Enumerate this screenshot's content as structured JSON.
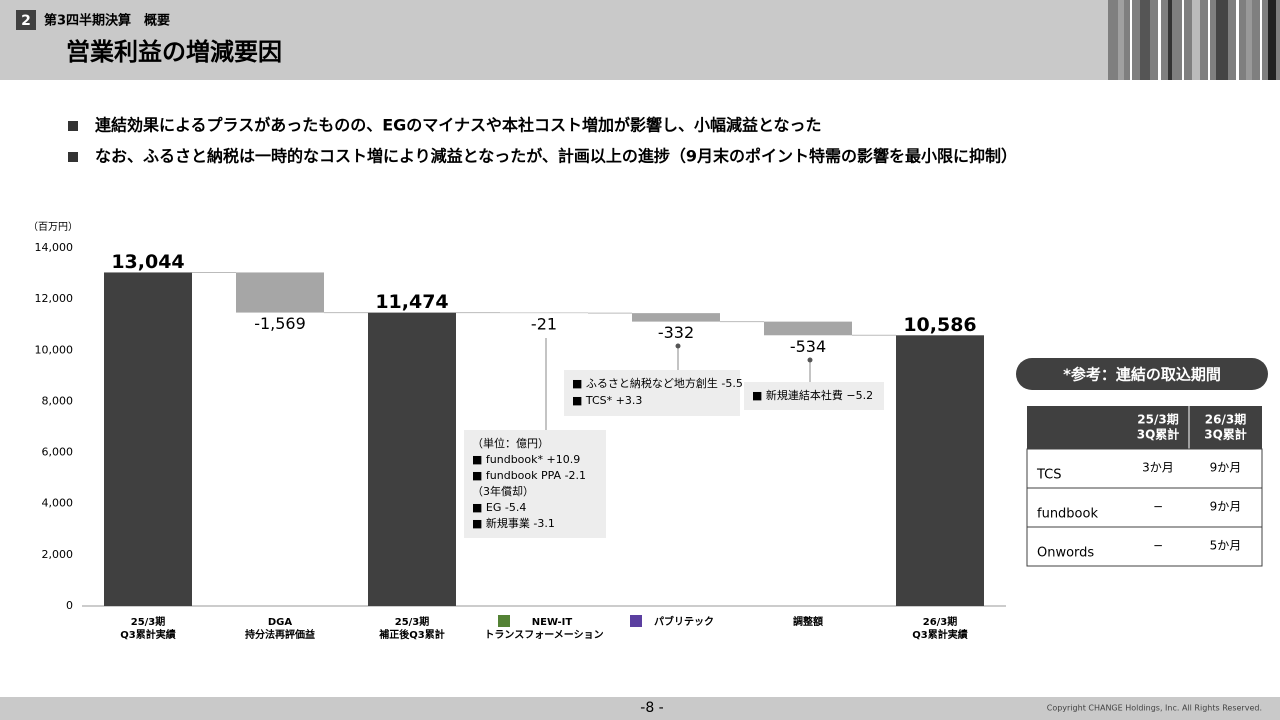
{
  "header": {
    "section_number": "2",
    "section": "第3四半期決算　概要",
    "title": "営業利益の増減要因"
  },
  "bullets": [
    "連結効果によるプラスがあったものの、EGのマイナスや本社コスト増加が影響し、小幅減益となった",
    "なお、ふるさと納税は一時的なコスト増により減益となったが、計画以上の進捗（9月末のポイント特需の影響を最小限に抑制）"
  ],
  "chart_data": {
    "type": "waterfall",
    "y_label": "（百万円）",
    "categories": [
      [
        "25/3期",
        "Q3累計実績"
      ],
      [
        "DGA",
        "持分法再評価益"
      ],
      [
        "25/3期",
        "補正後Q3累計"
      ],
      [
        "NEW-IT",
        "トランスフォーメーション"
      ],
      [
        "パブリテック"
      ],
      [
        "調整額"
      ],
      [
        "26/3期",
        "Q3累計実績"
      ]
    ],
    "category_icon_colors": {
      "3": "#548235",
      "4": "#5b3fa0"
    },
    "measure": [
      "absolute",
      "relative",
      "absolute",
      "relative",
      "relative",
      "relative",
      "absolute"
    ],
    "values": [
      13044,
      -1569,
      11474,
      -21,
      -332,
      -534,
      10586
    ],
    "value_labels": [
      "13,044",
      "-1,569",
      "11,474",
      "-21",
      "-332",
      "-534",
      "10,586"
    ],
    "colors": {
      "absolute": "#404040",
      "relative": "#a6a6a6"
    },
    "ylim": [
      0,
      14000
    ],
    "yticks": [
      0,
      {
        "value": 2000,
        "label": "2,000"
      },
      {
        "value": 4000,
        "label": "4,000"
      },
      {
        "value": 6000,
        "label": "6,000"
      },
      {
        "value": 8000,
        "label": "8,000"
      },
      {
        "value": 10000,
        "label": "10,000"
      },
      {
        "value": 12000,
        "label": "12,000"
      },
      {
        "value": 14000,
        "label": "14,000"
      }
    ],
    "annotations": [
      {
        "lines": [
          "（単位：億円）",
          "■ fundbook* +10.9",
          "■ fundbook PPA -2.1",
          "（3年償却）",
          "■ EG -5.4",
          "■ 新規事業 -3.1"
        ]
      },
      {
        "lines": [
          "■ ふるさと納税など地方創生 -5.5",
          "■ TCS* +3.3"
        ]
      },
      {
        "lines": [
          "■ 新規連結本社費 −5.2"
        ]
      }
    ]
  },
  "reference": {
    "title": "*参考：連結の取込期間",
    "columns": [
      [
        "25/3期",
        "3Q累計"
      ],
      [
        "26/3期",
        "3Q累計"
      ]
    ],
    "rows": [
      [
        "TCS",
        "3か月",
        "9か月"
      ],
      [
        "fundbook",
        "−",
        "9か月"
      ],
      [
        "Onwords",
        "−",
        "5か月"
      ]
    ]
  },
  "footer": {
    "page": "-8 -",
    "copyright": "Copyright CHANGE Holdings, Inc. All Rights Reserved."
  }
}
